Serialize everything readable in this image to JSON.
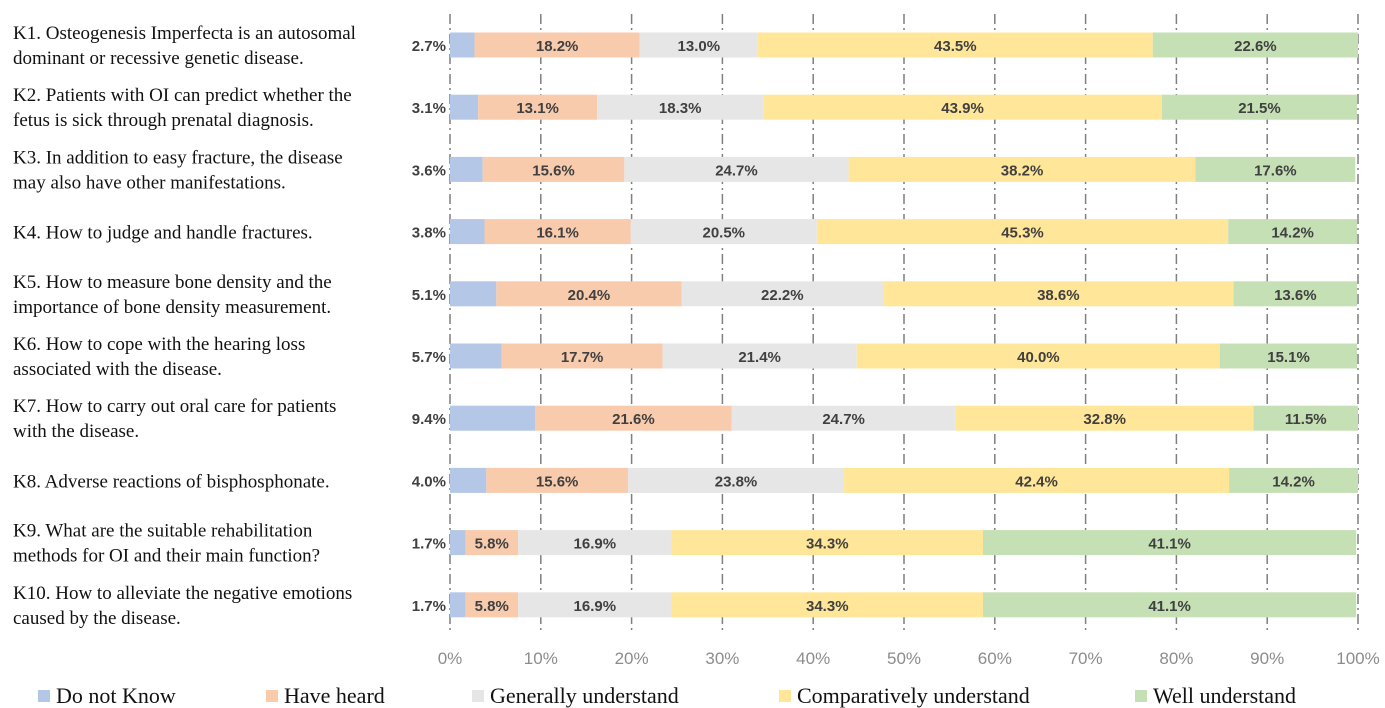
{
  "chart_data": {
    "type": "bar",
    "orientation": "horizontal",
    "stacked": true,
    "categories": [
      [
        "K1. Osteogenesis Imperfecta is an autosomal",
        "dominant or recessive genetic disease."
      ],
      [
        "K2. Patients with OI can predict whether the",
        "fetus is sick through prenatal diagnosis."
      ],
      [
        "K3. In addition to easy fracture, the disease",
        "may also have other manifestations."
      ],
      [
        "K4. How to judge and handle fractures."
      ],
      [
        "K5. How to measure bone density and the",
        "importance of bone density measurement."
      ],
      [
        "K6. How to cope with the hearing loss",
        "associated with the disease."
      ],
      [
        "K7. How to carry out oral care for patients",
        "with the disease."
      ],
      [
        "K8. Adverse reactions of bisphosphonate."
      ],
      [
        "K9. What are the suitable rehabilitation",
        "methods for OI and their main function?"
      ],
      [
        "K10. How to alleviate the negative emotions",
        "caused by the disease."
      ]
    ],
    "series": [
      {
        "name": "Do not Know",
        "color": "#b4c7e7",
        "values": [
          2.7,
          3.1,
          3.6,
          3.8,
          5.1,
          5.7,
          9.4,
          4.0,
          1.7,
          1.7
        ]
      },
      {
        "name": "Have heard",
        "color": "#f8cbad",
        "values": [
          18.2,
          13.1,
          15.6,
          16.1,
          20.4,
          17.7,
          21.6,
          15.6,
          5.8,
          5.8
        ]
      },
      {
        "name": "Generally understand",
        "color": "#e7e6e6",
        "values": [
          13.0,
          18.3,
          24.7,
          20.5,
          22.2,
          21.4,
          24.7,
          23.8,
          16.9,
          16.9
        ]
      },
      {
        "name": "Comparatively understand",
        "color": "#ffe699",
        "values": [
          43.5,
          43.9,
          38.2,
          45.3,
          38.6,
          40.0,
          32.8,
          42.4,
          34.3,
          34.3
        ]
      },
      {
        "name": "Well understand",
        "color": "#c5e0b4",
        "values": [
          22.6,
          21.5,
          17.6,
          14.2,
          13.6,
          15.1,
          11.5,
          14.2,
          41.1,
          41.1
        ]
      }
    ],
    "value_suffix": "%",
    "xlim": [
      0,
      100
    ],
    "xticks": [
      "0%",
      "10%",
      "20%",
      "30%",
      "40%",
      "50%",
      "60%",
      "70%",
      "80%",
      "90%",
      "100%"
    ],
    "grid": true,
    "legend_position": "bottom"
  }
}
